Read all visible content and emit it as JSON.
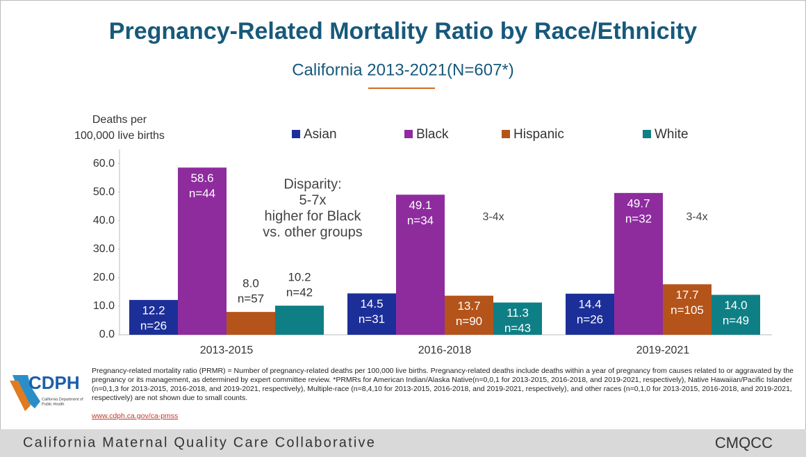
{
  "chart_data": {
    "type": "bar",
    "title": "Pregnancy-Related Mortality Ratio by Race/Ethnicity",
    "subtitle": "California 2013-2021(N=607*)",
    "y_label": [
      "Deaths per",
      "100,000 live births"
    ],
    "categories": [
      "2013-2015",
      "2016-2018",
      "2019-2021"
    ],
    "series": [
      {
        "name": "Asian",
        "color": "#1c2f99",
        "values": [
          12.2,
          14.5,
          14.4
        ],
        "value_labels": [
          "12.2",
          "14.5",
          "14.4"
        ],
        "n_labels": [
          "n=26",
          "n=31",
          "n=26"
        ]
      },
      {
        "name": "Black",
        "color": "#8e2c9e",
        "values": [
          58.6,
          49.1,
          49.7
        ],
        "value_labels": [
          "58.6",
          "49.1",
          "49.7"
        ],
        "n_labels": [
          "n=44",
          "n=34",
          "n=32"
        ]
      },
      {
        "name": "Hispanic",
        "color": "#b4541a",
        "values": [
          8.0,
          13.7,
          17.7
        ],
        "value_labels": [
          "8.0",
          "13.7",
          "17.7"
        ],
        "n_labels": [
          "n=57",
          "n=90",
          "n=105"
        ]
      },
      {
        "name": "White",
        "color": "#0f7f86",
        "values": [
          10.2,
          11.3,
          14.0
        ],
        "value_labels": [
          "10.2",
          "11.3",
          "14.0"
        ],
        "n_labels": [
          "n=42",
          "n=43",
          "n=49"
        ]
      }
    ],
    "ylim": [
      0,
      65
    ],
    "yticks": [
      {
        "value": 0,
        "label": "0.0"
      },
      {
        "value": 10,
        "label": "10.0"
      },
      {
        "value": 20,
        "label": "20.0"
      },
      {
        "value": 30,
        "label": "30.0"
      },
      {
        "value": 40,
        "label": "40.0"
      },
      {
        "value": 50,
        "label": "50.0"
      },
      {
        "value": 60,
        "label": "60.0"
      }
    ],
    "grid": false,
    "annotations": [
      {
        "lines": [
          "Disparity:",
          "5-7x",
          "higher for Black",
          "vs. other groups"
        ]
      },
      {
        "lines": [
          "3-4x"
        ]
      },
      {
        "lines": [
          "3-4x"
        ]
      }
    ]
  },
  "footnote": "Pregnancy-related mortality ratio (PRMR) = Number of pregnancy-related deaths per 100,000 live births. Pregnancy-related deaths include deaths within a year of pregnancy from causes related to or aggravated by the pregnancy or its management, as determined by expert committee review. *PRMRs for American Indian/Alaska Native(n=0,0,1 for 2013-2015, 2016-2018, and 2019-2021, respectively), Native Hawaiian/Pacific Islander (n=0,1,3 for 2013-2015, 2016-2018, and 2019-2021, respectively), Multiple-race (n=8,4,10 for 2013-2015, 2016-2018, and 2019-2021, respectively), and other races (n=0,1,0 for 2013-2015, 2016-2018, and 2019-2021, respectively) are not shown due to small counts.",
  "link": "www.cdph.ca.gov/ca-pmss",
  "logo": {
    "name": "CDPH",
    "caption": [
      "California Department of",
      "Public Health"
    ]
  },
  "footer": {
    "text": "California Maternal Quality Care Collaborative",
    "brand": "CMQCC"
  }
}
